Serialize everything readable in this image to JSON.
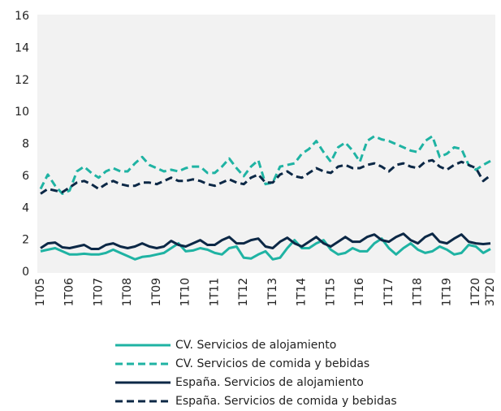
{
  "chart_data": {
    "type": "line",
    "categories": [
      "1T05",
      null,
      null,
      null,
      "1T06",
      null,
      null,
      null,
      "1T07",
      null,
      null,
      null,
      "1T08",
      null,
      null,
      null,
      "1T09",
      null,
      null,
      null,
      "1T10",
      null,
      null,
      null,
      "1T11",
      null,
      null,
      null,
      "1T12",
      null,
      null,
      null,
      "1T13",
      null,
      null,
      null,
      "1T14",
      null,
      null,
      null,
      "1T15",
      null,
      null,
      null,
      "1T16",
      null,
      null,
      null,
      "1T17",
      null,
      null,
      null,
      "1T18",
      null,
      null,
      null,
      "1T19",
      null,
      null,
      null,
      "1T20",
      null,
      "3T20"
    ],
    "ylim": [
      0,
      16
    ],
    "yticks": [
      0,
      2,
      4,
      6,
      8,
      10,
      12,
      14,
      16
    ],
    "grid": false,
    "series": [
      {
        "name": "CV. Servicios de alojamiento",
        "color": "#1fb3a3",
        "dashed": false,
        "values": [
          1.3,
          1.4,
          1.5,
          1.3,
          1.1,
          1.1,
          1.15,
          1.1,
          1.1,
          1.2,
          1.4,
          1.2,
          1.0,
          0.8,
          0.95,
          1.0,
          1.1,
          1.2,
          1.5,
          1.8,
          1.3,
          1.35,
          1.5,
          1.4,
          1.2,
          1.1,
          1.5,
          1.6,
          0.9,
          0.85,
          1.1,
          1.3,
          0.8,
          0.9,
          1.5,
          2.0,
          1.5,
          1.5,
          1.8,
          2.0,
          1.4,
          1.1,
          1.2,
          1.5,
          1.3,
          1.3,
          1.8,
          2.1,
          1.5,
          1.1,
          1.5,
          1.8,
          1.4,
          1.2,
          1.3,
          1.6,
          1.4,
          1.1,
          1.2,
          1.7,
          1.6,
          1.2,
          1.45
        ]
      },
      {
        "name": "CV. Servicios de comida y bebidas",
        "color": "#1fb3a3",
        "dashed": true,
        "values": [
          5.2,
          6.1,
          5.4,
          4.9,
          5.1,
          6.3,
          6.6,
          6.2,
          5.9,
          6.3,
          6.5,
          6.3,
          6.3,
          6.8,
          7.2,
          6.7,
          6.5,
          6.3,
          6.4,
          6.3,
          6.5,
          6.6,
          6.6,
          6.2,
          6.2,
          6.6,
          7.1,
          6.5,
          6.0,
          6.6,
          7.0,
          5.5,
          5.6,
          6.6,
          6.7,
          6.8,
          7.4,
          7.7,
          8.2,
          7.5,
          6.9,
          7.8,
          8.1,
          7.6,
          6.9,
          8.2,
          8.5,
          8.3,
          8.2,
          8.0,
          7.8,
          7.6,
          7.5,
          8.2,
          8.5,
          7.2,
          7.4,
          7.8,
          7.7,
          6.7,
          6.4,
          6.7,
          6.95
        ]
      },
      {
        "name": "España. Servicios de alojamiento",
        "color": "#0c2846",
        "dashed": false,
        "values": [
          1.5,
          1.8,
          1.85,
          1.55,
          1.5,
          1.6,
          1.7,
          1.45,
          1.45,
          1.7,
          1.8,
          1.6,
          1.5,
          1.6,
          1.8,
          1.6,
          1.5,
          1.6,
          1.95,
          1.7,
          1.6,
          1.8,
          2.0,
          1.7,
          1.7,
          2.0,
          2.2,
          1.8,
          1.8,
          2.0,
          2.1,
          1.6,
          1.5,
          1.9,
          2.15,
          1.8,
          1.6,
          1.9,
          2.2,
          1.8,
          1.6,
          1.9,
          2.2,
          1.9,
          1.9,
          2.2,
          2.35,
          2.0,
          1.9,
          2.2,
          2.4,
          2.0,
          1.8,
          2.2,
          2.4,
          1.9,
          1.8,
          2.1,
          2.35,
          1.9,
          1.8,
          1.75,
          1.8
        ]
      },
      {
        "name": "España. Servicios de comida y bebidas",
        "color": "#0c2846",
        "dashed": true,
        "values": [
          4.9,
          5.2,
          5.1,
          5.0,
          5.3,
          5.6,
          5.7,
          5.5,
          5.2,
          5.5,
          5.7,
          5.5,
          5.4,
          5.4,
          5.6,
          5.6,
          5.5,
          5.7,
          5.9,
          5.7,
          5.7,
          5.8,
          5.7,
          5.5,
          5.4,
          5.6,
          5.8,
          5.6,
          5.5,
          5.9,
          6.1,
          5.6,
          5.6,
          6.1,
          6.3,
          6.0,
          5.9,
          6.2,
          6.5,
          6.3,
          6.2,
          6.6,
          6.7,
          6.5,
          6.5,
          6.7,
          6.8,
          6.6,
          6.3,
          6.7,
          6.8,
          6.6,
          6.5,
          6.9,
          7.0,
          6.6,
          6.4,
          6.7,
          6.9,
          6.7,
          6.5,
          5.7,
          6.05
        ]
      }
    ]
  }
}
